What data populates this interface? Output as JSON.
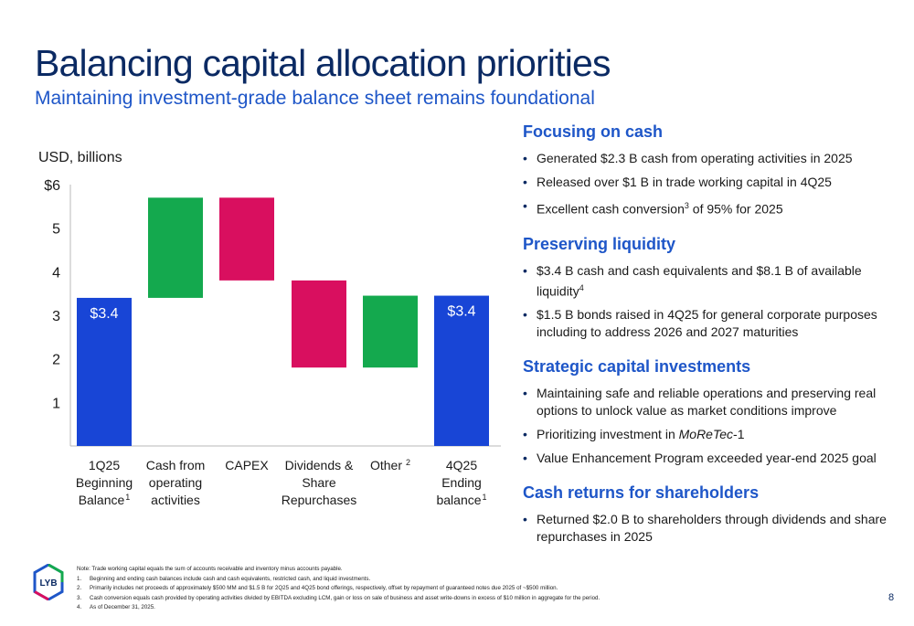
{
  "title": "Balancing capital allocation priorities",
  "subtitle": "Maintaining investment-grade balance sheet remains foundational",
  "colors": {
    "increase": "#14a94e",
    "decrease": "#d90f5f",
    "total": "#1845d6",
    "title": "#0b2a63",
    "accent": "#1e56c8"
  },
  "chart_data": {
    "type": "bar",
    "subtype": "waterfall",
    "unit_label": "USD, billions",
    "ylim": [
      0,
      6
    ],
    "yticks": [
      "1",
      "2",
      "3",
      "4",
      "5",
      "$6"
    ],
    "grid": false,
    "categories": [
      {
        "lines": [
          "1Q25",
          "Beginning",
          "Balance"
        ],
        "sup": "1"
      },
      {
        "lines": [
          "Cash from",
          "operating",
          "activities"
        ],
        "sup": ""
      },
      {
        "lines": [
          "CAPEX"
        ],
        "sup": ""
      },
      {
        "lines": [
          "Dividends &",
          "Share",
          "Repurchases"
        ],
        "sup": ""
      },
      {
        "lines": [
          "Other"
        ],
        "sup": "2"
      },
      {
        "lines": [
          "4Q25",
          "Ending",
          "balance"
        ],
        "sup": "1"
      }
    ],
    "bars": [
      {
        "kind": "total",
        "start": 0,
        "end": 3.4,
        "label": "$3.4"
      },
      {
        "kind": "increase",
        "start": 3.4,
        "end": 5.7,
        "label": ""
      },
      {
        "kind": "decrease",
        "start": 5.7,
        "end": 3.8,
        "label": ""
      },
      {
        "kind": "decrease",
        "start": 3.8,
        "end": 1.8,
        "label": ""
      },
      {
        "kind": "increase",
        "start": 1.8,
        "end": 3.45,
        "label": ""
      },
      {
        "kind": "total",
        "start": 0,
        "end": 3.45,
        "label": "$3.4"
      }
    ]
  },
  "sections": [
    {
      "heading": "Focusing on cash",
      "bullets": [
        [
          {
            "t": "Generated $2.3 B cash from operating activities in 2025"
          }
        ],
        [
          {
            "t": "Released over $1 B in trade working capital in 4Q25"
          }
        ],
        [
          {
            "t": "Excellent cash conversion"
          },
          {
            "t": "3",
            "sup": true
          },
          {
            "t": " of 95% for 2025"
          }
        ]
      ]
    },
    {
      "heading": "Preserving liquidity",
      "bullets": [
        [
          {
            "t": "$3.4 B cash and cash equivalents and $8.1 B of available liquidity"
          },
          {
            "t": "4",
            "sup": true
          }
        ],
        [
          {
            "t": "$1.5 B bonds raised in 4Q25 for general corporate purposes including to address 2026 and 2027 maturities"
          }
        ]
      ]
    },
    {
      "heading": "Strategic capital investments",
      "bullets": [
        [
          {
            "t": "Maintaining safe and reliable operations and preserving real options to unlock value as market conditions improve"
          }
        ],
        [
          {
            "t": "Prioritizing investment in "
          },
          {
            "t": "MoReTec",
            "it": true
          },
          {
            "t": "-1"
          }
        ],
        [
          {
            "t": "Value Enhancement Program exceeded year-end 2025 goal"
          }
        ]
      ]
    },
    {
      "heading": "Cash returns for shareholders",
      "bullets": [
        [
          {
            "t": "Returned $2.0 B to shareholders through dividends and share repurchases in 2025"
          }
        ]
      ]
    }
  ],
  "logo_text": "LYB",
  "footnotes": {
    "note": "Note: Trade working capital equals the sum of accounts receivable and inventory minus accounts payable.",
    "items": [
      {
        "num": "1.",
        "text": "Beginning and ending cash balances include cash and cash equivalents, restricted cash, and liquid investments."
      },
      {
        "num": "2.",
        "text": "Primarily includes net proceeds of  approximately $500 MM and $1.5 B for 2Q25 and 4Q25 bond offerings, respectively, offset by repayment of guaranteed notes due 2025 of ~$500 million."
      },
      {
        "num": "3.",
        "text": "Cash conversion equals cash provided by operating activities divided by EBITDA excluding LCM, gain or loss on sale of business and asset write-downs in excess of $10 million in aggregate for the period."
      },
      {
        "num": "4.",
        "text": "As of December 31, 2025."
      }
    ]
  },
  "page_number": "8"
}
